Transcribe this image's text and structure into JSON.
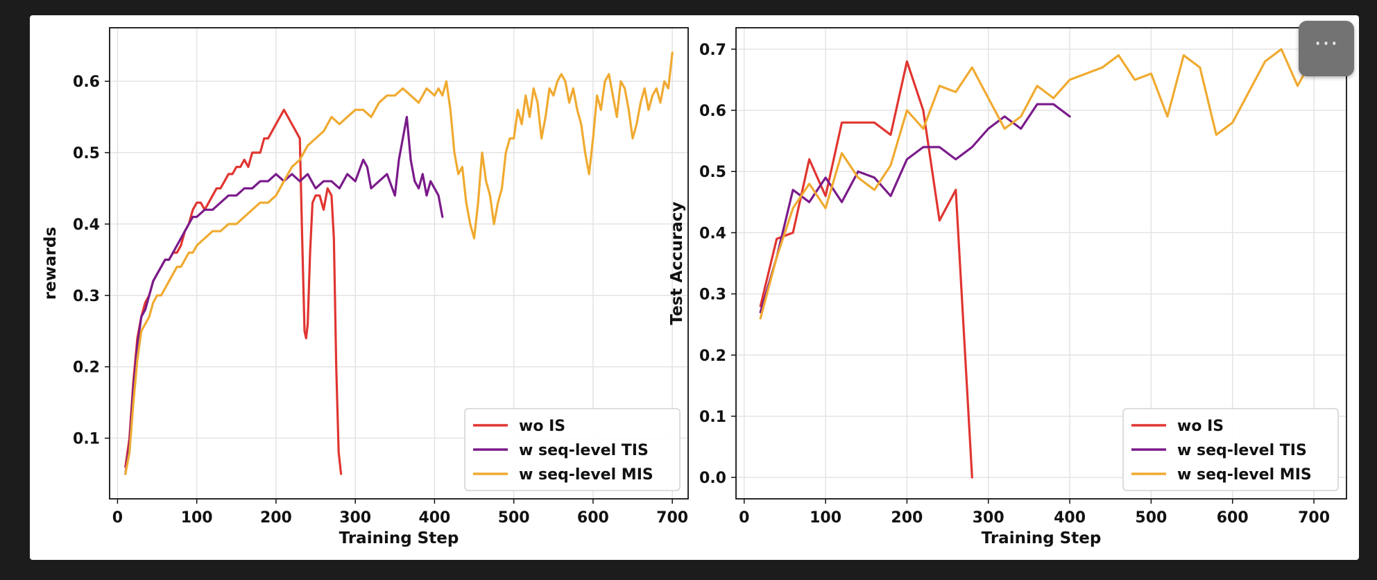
{
  "ui": {
    "more_button": {
      "label": "···",
      "icon": "more-dots-icon"
    }
  },
  "chart_data": [
    {
      "type": "line",
      "title": "",
      "xlabel": "Training Step",
      "ylabel": "rewards",
      "xlim": [
        -10,
        720
      ],
      "ylim": [
        0.015,
        0.675
      ],
      "xticks": [
        0,
        100,
        200,
        300,
        400,
        500,
        600,
        700
      ],
      "yticks": [
        0.1,
        0.2,
        0.3,
        0.4,
        0.5,
        0.6
      ],
      "ytick_decimals": 1,
      "grid": true,
      "legend": "lower-right",
      "series": [
        {
          "name": "wo IS",
          "color": "#e03530",
          "x": [
            10,
            15,
            20,
            25,
            30,
            35,
            40,
            45,
            50,
            55,
            60,
            65,
            70,
            75,
            80,
            85,
            90,
            95,
            100,
            105,
            110,
            115,
            120,
            125,
            130,
            135,
            140,
            145,
            150,
            155,
            160,
            165,
            170,
            175,
            180,
            185,
            190,
            195,
            200,
            205,
            210,
            215,
            220,
            225,
            230,
            233,
            236,
            238,
            240,
            243,
            246,
            250,
            255,
            260,
            265,
            270,
            273,
            276,
            279,
            282
          ],
          "y": [
            0.06,
            0.1,
            0.18,
            0.24,
            0.27,
            0.29,
            0.3,
            0.32,
            0.33,
            0.34,
            0.35,
            0.35,
            0.36,
            0.36,
            0.37,
            0.39,
            0.4,
            0.42,
            0.43,
            0.43,
            0.42,
            0.43,
            0.44,
            0.45,
            0.45,
            0.46,
            0.47,
            0.47,
            0.48,
            0.48,
            0.49,
            0.48,
            0.5,
            0.5,
            0.5,
            0.52,
            0.52,
            0.53,
            0.54,
            0.55,
            0.56,
            0.55,
            0.54,
            0.53,
            0.52,
            0.38,
            0.25,
            0.24,
            0.26,
            0.36,
            0.43,
            0.44,
            0.44,
            0.42,
            0.45,
            0.44,
            0.38,
            0.2,
            0.08,
            0.05
          ]
        },
        {
          "name": "w seq-level TIS",
          "color": "#7a1a8a",
          "x": [
            10,
            15,
            20,
            25,
            30,
            35,
            40,
            45,
            50,
            55,
            60,
            65,
            70,
            75,
            80,
            85,
            90,
            95,
            100,
            110,
            120,
            130,
            140,
            150,
            160,
            170,
            180,
            190,
            200,
            210,
            220,
            230,
            240,
            250,
            260,
            270,
            280,
            290,
            300,
            310,
            315,
            320,
            330,
            340,
            350,
            355,
            360,
            365,
            370,
            375,
            380,
            385,
            390,
            395,
            400,
            405,
            410
          ],
          "y": [
            0.05,
            0.09,
            0.17,
            0.23,
            0.27,
            0.28,
            0.3,
            0.32,
            0.33,
            0.34,
            0.35,
            0.35,
            0.36,
            0.37,
            0.38,
            0.39,
            0.4,
            0.41,
            0.41,
            0.42,
            0.42,
            0.43,
            0.44,
            0.44,
            0.45,
            0.45,
            0.46,
            0.46,
            0.47,
            0.46,
            0.47,
            0.46,
            0.47,
            0.45,
            0.46,
            0.46,
            0.45,
            0.47,
            0.46,
            0.49,
            0.48,
            0.45,
            0.46,
            0.47,
            0.44,
            0.49,
            0.52,
            0.55,
            0.49,
            0.46,
            0.45,
            0.47,
            0.44,
            0.46,
            0.45,
            0.44,
            0.41
          ]
        },
        {
          "name": "w seq-level MIS",
          "color": "#f0aa30",
          "x": [
            10,
            15,
            20,
            25,
            30,
            35,
            40,
            45,
            50,
            55,
            60,
            65,
            70,
            75,
            80,
            85,
            90,
            95,
            100,
            110,
            120,
            130,
            140,
            150,
            160,
            170,
            180,
            190,
            200,
            210,
            220,
            230,
            240,
            250,
            260,
            270,
            280,
            290,
            300,
            310,
            320,
            330,
            340,
            350,
            360,
            370,
            380,
            390,
            400,
            405,
            410,
            415,
            420,
            425,
            430,
            435,
            440,
            445,
            450,
            455,
            460,
            465,
            470,
            475,
            480,
            485,
            490,
            495,
            500,
            505,
            510,
            515,
            520,
            525,
            530,
            535,
            540,
            545,
            550,
            555,
            560,
            565,
            570,
            575,
            580,
            585,
            590,
            595,
            600,
            605,
            610,
            615,
            620,
            625,
            630,
            635,
            640,
            645,
            650,
            655,
            660,
            665,
            670,
            675,
            680,
            685,
            690,
            695,
            700
          ],
          "y": [
            0.05,
            0.08,
            0.15,
            0.21,
            0.25,
            0.26,
            0.27,
            0.29,
            0.3,
            0.3,
            0.31,
            0.32,
            0.33,
            0.34,
            0.34,
            0.35,
            0.36,
            0.36,
            0.37,
            0.38,
            0.39,
            0.39,
            0.4,
            0.4,
            0.41,
            0.42,
            0.43,
            0.43,
            0.44,
            0.46,
            0.48,
            0.49,
            0.51,
            0.52,
            0.53,
            0.55,
            0.54,
            0.55,
            0.56,
            0.56,
            0.55,
            0.57,
            0.58,
            0.58,
            0.59,
            0.58,
            0.57,
            0.59,
            0.58,
            0.59,
            0.58,
            0.6,
            0.56,
            0.5,
            0.47,
            0.48,
            0.43,
            0.4,
            0.38,
            0.43,
            0.5,
            0.46,
            0.44,
            0.4,
            0.43,
            0.45,
            0.5,
            0.52,
            0.52,
            0.56,
            0.54,
            0.58,
            0.55,
            0.59,
            0.57,
            0.52,
            0.55,
            0.59,
            0.58,
            0.6,
            0.61,
            0.6,
            0.57,
            0.59,
            0.56,
            0.54,
            0.5,
            0.47,
            0.52,
            0.58,
            0.56,
            0.6,
            0.61,
            0.58,
            0.55,
            0.6,
            0.59,
            0.56,
            0.52,
            0.54,
            0.57,
            0.59,
            0.56,
            0.58,
            0.59,
            0.57,
            0.6,
            0.59,
            0.64
          ]
        }
      ]
    },
    {
      "type": "line",
      "title": "",
      "xlabel": "Training Step",
      "ylabel": "Test Accuracy",
      "xlim": [
        -10,
        740
      ],
      "ylim": [
        -0.035,
        0.735
      ],
      "xticks": [
        0,
        100,
        200,
        300,
        400,
        500,
        600,
        700
      ],
      "yticks": [
        0.0,
        0.1,
        0.2,
        0.3,
        0.4,
        0.5,
        0.6,
        0.7
      ],
      "ytick_decimals": 1,
      "grid": true,
      "legend": "lower-right",
      "series": [
        {
          "name": "wo IS",
          "color": "#e03530",
          "x": [
            20,
            40,
            60,
            80,
            100,
            120,
            140,
            160,
            180,
            200,
            220,
            240,
            260,
            280
          ],
          "y": [
            0.28,
            0.39,
            0.4,
            0.52,
            0.46,
            0.58,
            0.58,
            0.58,
            0.56,
            0.68,
            0.6,
            0.42,
            0.47,
            0.0
          ]
        },
        {
          "name": "w seq-level TIS",
          "color": "#7a1a8a",
          "x": [
            20,
            40,
            60,
            80,
            100,
            120,
            140,
            160,
            180,
            200,
            220,
            240,
            260,
            280,
            300,
            320,
            340,
            360,
            380,
            400
          ],
          "y": [
            0.27,
            0.36,
            0.47,
            0.45,
            0.49,
            0.45,
            0.5,
            0.49,
            0.46,
            0.52,
            0.54,
            0.54,
            0.52,
            0.54,
            0.57,
            0.59,
            0.57,
            0.61,
            0.61,
            0.59
          ]
        },
        {
          "name": "w seq-level MIS",
          "color": "#f0aa30",
          "x": [
            20,
            40,
            60,
            80,
            100,
            120,
            140,
            160,
            180,
            200,
            220,
            240,
            260,
            280,
            300,
            320,
            340,
            360,
            380,
            400,
            420,
            440,
            460,
            480,
            500,
            520,
            540,
            560,
            580,
            600,
            620,
            640,
            660,
            680,
            700
          ],
          "y": [
            0.26,
            0.36,
            0.44,
            0.48,
            0.44,
            0.53,
            0.49,
            0.47,
            0.51,
            0.6,
            0.57,
            0.64,
            0.63,
            0.67,
            0.62,
            0.57,
            0.59,
            0.64,
            0.62,
            0.65,
            0.66,
            0.67,
            0.69,
            0.65,
            0.66,
            0.59,
            0.69,
            0.67,
            0.56,
            0.58,
            0.63,
            0.68,
            0.7,
            0.64,
            0.69
          ]
        }
      ]
    }
  ]
}
